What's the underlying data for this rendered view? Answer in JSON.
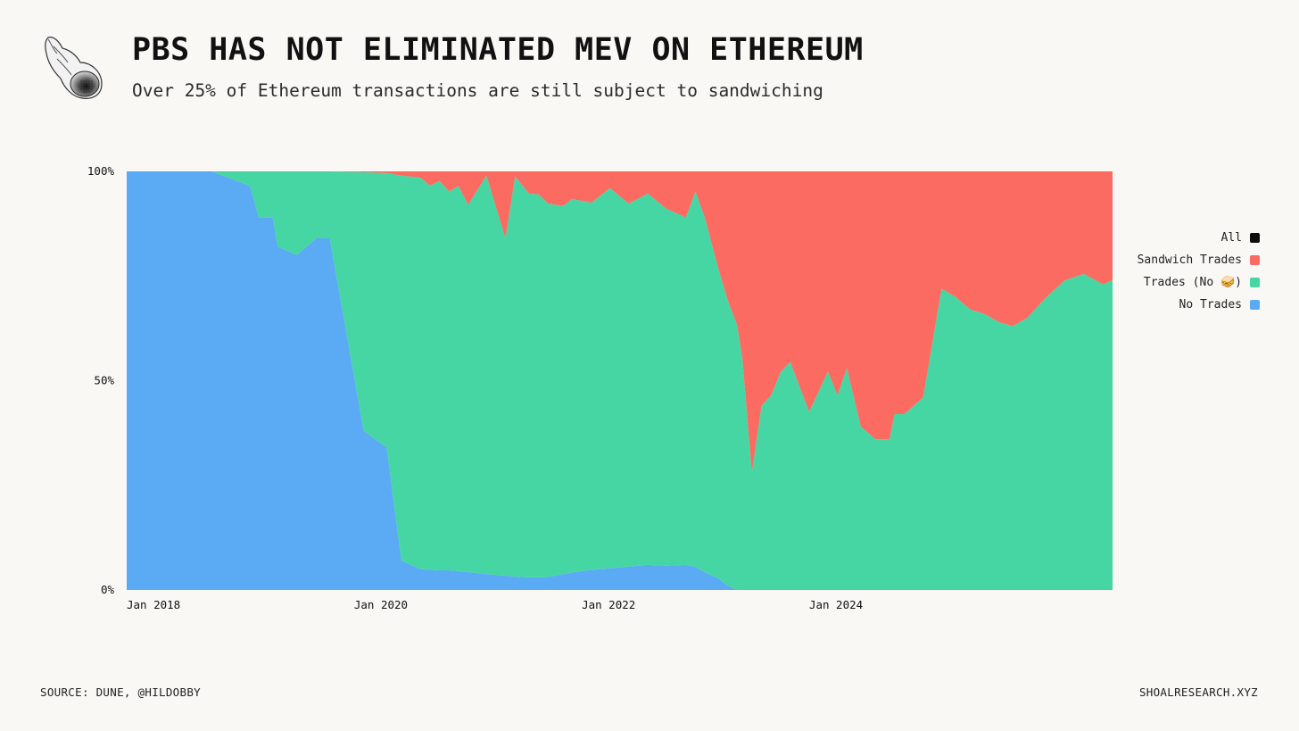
{
  "header": {
    "title": "PBS HAS NOT ELIMINATED MEV ON ETHEREUM",
    "subtitle": "Over 25% of Ethereum transactions are still subject to sandwiching",
    "logo_icon": "seashell-icon"
  },
  "footer": {
    "source": "SOURCE: DUNE, @HILDOBBY",
    "site": "SHOALRESEARCH.XYZ"
  },
  "legend": [
    {
      "label": "All",
      "color": "#0d0d0d"
    },
    {
      "label": "Sandwich Trades",
      "color": "#fc6b61"
    },
    {
      "label": "Trades (No 🥪)",
      "color": "#46d6a3"
    },
    {
      "label": "No Trades",
      "color": "#5baaf4"
    }
  ],
  "chart_data": {
    "type": "area",
    "stacked": "percent",
    "xlim": [
      "2018-01-01",
      "2026-09-01"
    ],
    "ylim": [
      0,
      100
    ],
    "y_ticks": [
      "0%",
      "50%",
      "100%"
    ],
    "y_tick_values": [
      0,
      50,
      100
    ],
    "x_ticks": [
      "Jan 2018",
      "Jan 2020",
      "Jan 2022",
      "Jan 2024"
    ],
    "x_tick_values": [
      "2018-01-01",
      "2020-01-01",
      "2022-01-01",
      "2024-01-01"
    ],
    "grid": false,
    "legend_position": "right",
    "x": [
      "2018-01-01",
      "2018-10-01",
      "2019-02-01",
      "2019-03-01",
      "2019-04-15",
      "2019-05-01",
      "2019-07-01",
      "2019-09-01",
      "2019-10-15",
      "2020-02-01",
      "2020-04-15",
      "2020-06-01",
      "2020-08-01",
      "2020-09-01",
      "2020-10-01",
      "2020-11-01",
      "2020-12-01",
      "2021-01-01",
      "2021-03-01",
      "2021-05-01",
      "2021-06-01",
      "2021-07-15",
      "2021-08-15",
      "2021-09-15",
      "2021-11-01",
      "2021-12-01",
      "2022-02-01",
      "2022-04-01",
      "2022-06-01",
      "2022-08-01",
      "2022-10-01",
      "2022-12-01",
      "2023-01-01",
      "2023-02-01",
      "2023-03-15",
      "2023-04-15",
      "2023-05-15",
      "2023-06-01",
      "2023-07-01",
      "2023-08-01",
      "2023-09-01",
      "2023-10-01",
      "2023-11-01",
      "2024-01-01",
      "2024-02-01",
      "2024-03-01",
      "2024-04-01",
      "2024-05-01",
      "2024-06-15",
      "2024-08-01",
      "2024-09-15",
      "2024-10-01",
      "2024-11-01",
      "2025-01-01",
      "2025-03-01",
      "2025-04-15",
      "2025-06-01",
      "2025-07-15",
      "2025-09-01",
      "2025-10-15",
      "2025-12-01",
      "2026-02-01",
      "2026-04-01",
      "2026-06-01",
      "2026-08-01",
      "2026-09-01"
    ],
    "series": [
      {
        "name": "No Trades",
        "color": "#5baaf4",
        "values": [
          100,
          100,
          96.5,
          89,
          89,
          82,
          80,
          84,
          84,
          38,
          34,
          7,
          5,
          4.8,
          4.7,
          4.7,
          4.5,
          4.3,
          3.8,
          3.4,
          3.2,
          3.0,
          3.0,
          3.1,
          3.8,
          4.2,
          4.8,
          5.2,
          5.6,
          6,
          5.8,
          6,
          5.5,
          4.2,
          2.8,
          1,
          0,
          0,
          0,
          0,
          0,
          0,
          0,
          0,
          0,
          0,
          0,
          0,
          0,
          0,
          0,
          0,
          0,
          0,
          0,
          0,
          0,
          0,
          0,
          0,
          0,
          0,
          0,
          0,
          0,
          0
        ]
      },
      {
        "name": "Trades (No 🥪)",
        "color": "#46d6a3",
        "values": [
          0,
          0,
          3.5,
          11,
          11,
          18,
          20,
          16,
          16,
          61.8,
          65.6,
          92,
          93.5,
          91.8,
          93,
          90.5,
          92,
          87.7,
          95.2,
          80.6,
          95.6,
          91.7,
          91.5,
          89.2,
          87.9,
          89.2,
          87.7,
          90.8,
          86.7,
          88.7,
          85.2,
          83,
          89.7,
          84.5,
          74.1,
          68.1,
          63.2,
          55,
          28,
          44,
          46.5,
          52,
          54.5,
          42.6,
          47.5,
          52.2,
          46.5,
          53,
          39,
          36,
          36,
          42,
          42,
          46,
          72,
          70,
          67,
          66,
          64,
          63,
          65,
          70,
          74,
          75.5,
          73,
          74
        ]
      },
      {
        "name": "Sandwich Trades",
        "color": "#fc6b61",
        "values": [
          0,
          0,
          0,
          0,
          0,
          0,
          0,
          0,
          0,
          0.2,
          0.4,
          1,
          1.5,
          3.4,
          2.3,
          4.8,
          3.5,
          8,
          1,
          16,
          1.2,
          5.3,
          5.5,
          7.7,
          8.3,
          6.6,
          7.5,
          4,
          7.7,
          5.3,
          9,
          11,
          4.8,
          11.3,
          23.1,
          30.9,
          36.8,
          45,
          72,
          56,
          53.5,
          48,
          45.5,
          57.4,
          52.5,
          47.8,
          53.5,
          47,
          61,
          64,
          64,
          58,
          58,
          54,
          28,
          30,
          33,
          34,
          36,
          37,
          35,
          30,
          26,
          24.5,
          27,
          26
        ]
      }
    ]
  }
}
